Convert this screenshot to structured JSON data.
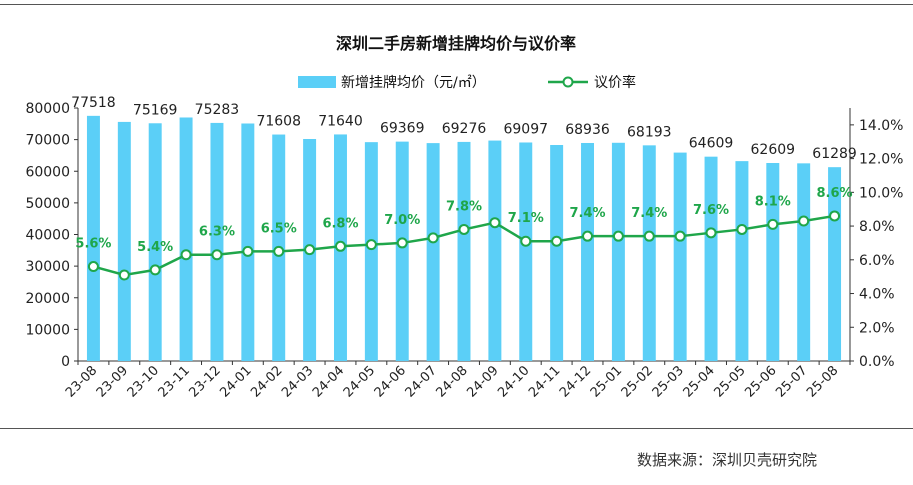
{
  "chart_data": {
    "type": "bar",
    "title": "深圳二手房新增挂牌均价与议价率",
    "categories": [
      "23-08",
      "23-09",
      "23-10",
      "23-11",
      "23-12",
      "24-01",
      "24-02",
      "24-03",
      "24-04",
      "24-05",
      "24-06",
      "24-07",
      "24-08",
      "24-09",
      "24-10",
      "24-11",
      "24-12",
      "25-01",
      "25-02",
      "25-03",
      "25-04",
      "25-05",
      "25-06",
      "25-07",
      "25-08"
    ],
    "series": [
      {
        "name": "新增挂牌均价（元/㎡）",
        "type": "bar",
        "axis": "left",
        "color": "#5BCFF7",
        "values": [
          77518,
          75600,
          75169,
          77000,
          75283,
          75100,
          71608,
          70200,
          71640,
          69200,
          69369,
          68900,
          69276,
          69700,
          69097,
          68300,
          68936,
          69000,
          68193,
          65900,
          64609,
          63200,
          62609,
          62500,
          61289
        ],
        "labels": [
          "77518",
          "",
          "75169",
          "",
          "75283",
          "",
          "71608",
          "",
          "71640",
          "",
          "69369",
          "",
          "69276",
          "",
          "69097",
          "",
          "68936",
          "",
          "68193",
          "",
          "64609",
          "",
          "62609",
          "",
          "61289"
        ]
      },
      {
        "name": "议价率",
        "type": "line",
        "axis": "right",
        "color": "#1FA64A",
        "values": [
          5.6,
          5.1,
          5.4,
          6.3,
          6.3,
          6.5,
          6.5,
          6.6,
          6.8,
          6.9,
          7.0,
          7.3,
          7.8,
          8.2,
          7.1,
          7.1,
          7.4,
          7.4,
          7.4,
          7.4,
          7.6,
          7.8,
          8.1,
          8.3,
          8.6
        ],
        "labels": [
          "5.6%",
          "",
          "5.4%",
          "",
          "6.3%",
          "",
          "6.5%",
          "",
          "6.8%",
          "",
          "7.0%",
          "",
          "7.8%",
          "",
          "7.1%",
          "",
          "7.4%",
          "",
          "7.4%",
          "",
          "7.6%",
          "",
          "8.1%",
          "",
          "8.6%"
        ]
      }
    ],
    "y_left": {
      "min": 0,
      "max": 80000,
      "ticks": [
        "0",
        "10000",
        "20000",
        "30000",
        "40000",
        "50000",
        "60000",
        "70000",
        "80000"
      ]
    },
    "y_right": {
      "min": 0,
      "max": 15,
      "ticks": [
        "0.0%",
        "2.0%",
        "4.0%",
        "6.0%",
        "8.0%",
        "10.0%",
        "12.0%",
        "14.0%"
      ]
    },
    "legend_position": "top",
    "grid": false
  },
  "source_text": "数据来源：深圳贝壳研究院"
}
